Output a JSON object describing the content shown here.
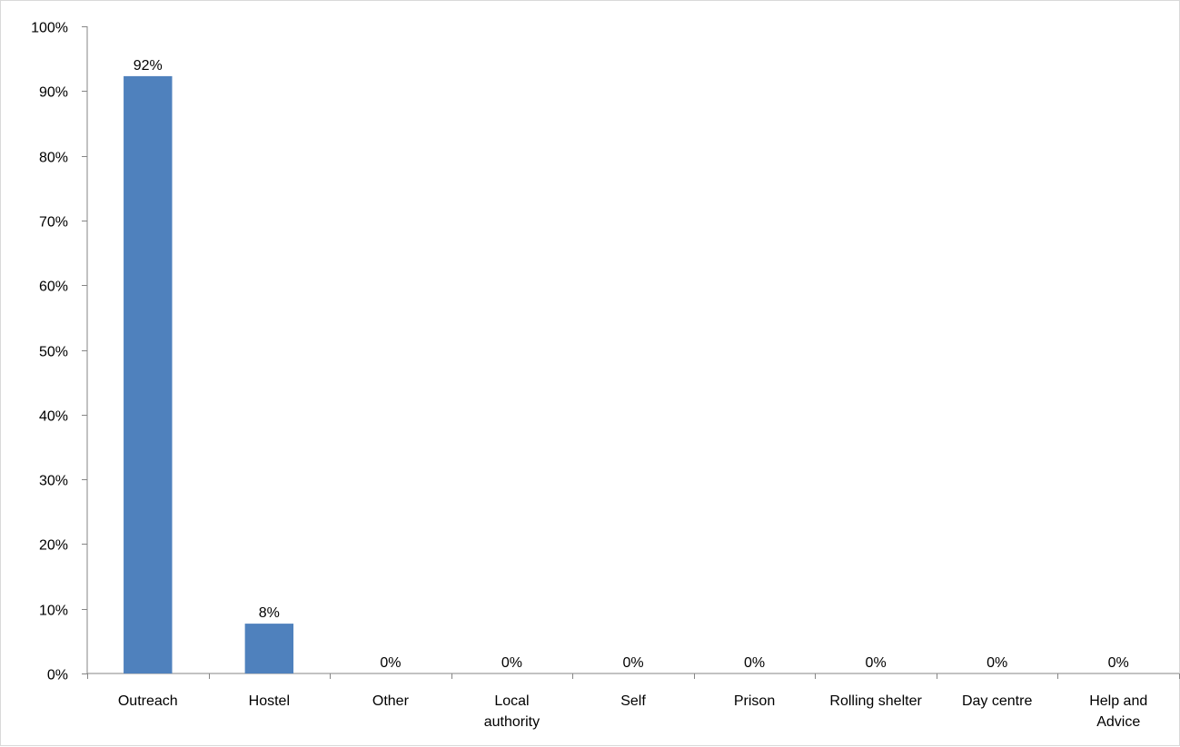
{
  "chart_data": {
    "type": "bar",
    "title": "",
    "xlabel": "",
    "ylabel": "",
    "categories": [
      [
        "Outreach"
      ],
      [
        "Hostel"
      ],
      [
        "Other"
      ],
      [
        "Local",
        "authority"
      ],
      [
        "Self"
      ],
      [
        "Prison"
      ],
      [
        "Rolling shelter"
      ],
      [
        "Day centre"
      ],
      [
        "Help and",
        "Advice"
      ]
    ],
    "values": [
      92.3,
      7.7,
      0,
      0,
      0,
      0,
      0,
      0,
      0
    ],
    "data_labels": [
      "92%",
      "8%",
      "0%",
      "0%",
      "0%",
      "0%",
      "0%",
      "0%",
      "0%"
    ],
    "ylim": [
      0,
      100
    ],
    "yticks": [
      0,
      10,
      20,
      30,
      40,
      50,
      60,
      70,
      80,
      90,
      100
    ],
    "ytick_labels": [
      "0%",
      "10%",
      "20%",
      "30%",
      "40%",
      "50%",
      "60%",
      "70%",
      "80%",
      "90%",
      "100%"
    ],
    "grid": false,
    "legend": "none",
    "bar_color": "#4f81bd",
    "axis_color": "#868686"
  }
}
